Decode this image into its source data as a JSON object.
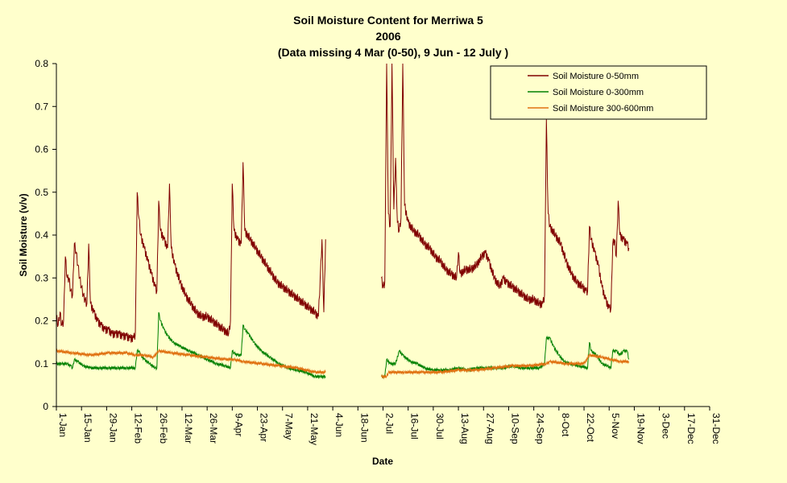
{
  "chart_data": {
    "type": "line",
    "title": [
      "Soil Moisture Content for Merriwa 5",
      "2006",
      "(Data missing 4 Mar (0-50), 9 Jun - 12 July )"
    ],
    "xlabel": "Date",
    "ylabel": "Soil Moisture (v/v)",
    "ylim": [
      0,
      0.8
    ],
    "yticks": [
      "0",
      "0.1",
      "0.2",
      "0.3",
      "0.4",
      "0.5",
      "0.6",
      "0.7",
      "0.8"
    ],
    "xlim": [
      "1-Jan",
      "31-Dec"
    ],
    "xticks": [
      "1-Jan",
      "15-Jan",
      "29-Jan",
      "12-Feb",
      "26-Feb",
      "12-Mar",
      "26-Mar",
      "9-Apr",
      "23-Apr",
      "7-May",
      "21-May",
      "4-Jun",
      "18-Jun",
      "2-Jul",
      "16-Jul",
      "30-Jul",
      "13-Aug",
      "27-Aug",
      "10-Sep",
      "24-Sep",
      "8-Oct",
      "22-Oct",
      "5-Nov",
      "19-Nov",
      "3-Dec",
      "17-Dec",
      "31-Dec"
    ],
    "grid": false,
    "legend_position": "top-right",
    "colors": {
      "background": "#ffffcc",
      "series_0_50": "#800000",
      "series_0_300": "#008000",
      "series_300_600": "#e07010"
    },
    "series": [
      {
        "name": "Soil Moisture 0-50mm",
        "color": "#800000",
        "points": [
          [
            1,
            0.21
          ],
          [
            2,
            0.19
          ],
          [
            3,
            0.22
          ],
          [
            4,
            0.19
          ],
          [
            5,
            0.2
          ],
          [
            6,
            0.35
          ],
          [
            7,
            0.3
          ],
          [
            8,
            0.3
          ],
          [
            9,
            0.27
          ],
          [
            10,
            0.26
          ],
          [
            11,
            0.38
          ],
          [
            12,
            0.36
          ],
          [
            13,
            0.33
          ],
          [
            14,
            0.3
          ],
          [
            15,
            0.28
          ],
          [
            16,
            0.26
          ],
          [
            17,
            0.25
          ],
          [
            18,
            0.24
          ],
          [
            19,
            0.38
          ],
          [
            20,
            0.24
          ],
          [
            22,
            0.22
          ],
          [
            24,
            0.2
          ],
          [
            26,
            0.19
          ],
          [
            28,
            0.18
          ],
          [
            30,
            0.18
          ],
          [
            32,
            0.17
          ],
          [
            34,
            0.17
          ],
          [
            36,
            0.17
          ],
          [
            38,
            0.165
          ],
          [
            40,
            0.165
          ],
          [
            42,
            0.16
          ],
          [
            44,
            0.16
          ],
          [
            45,
            0.17
          ],
          [
            46,
            0.5
          ],
          [
            47,
            0.44
          ],
          [
            48,
            0.4
          ],
          [
            50,
            0.37
          ],
          [
            52,
            0.34
          ],
          [
            54,
            0.31
          ],
          [
            56,
            0.28
          ],
          [
            57,
            0.27
          ],
          [
            58,
            0.48
          ],
          [
            59,
            0.41
          ],
          [
            61,
            0.39
          ],
          [
            63,
            0.37
          ],
          [
            64,
            0.52
          ],
          [
            65,
            0.37
          ],
          [
            67,
            0.33
          ],
          [
            70,
            0.29
          ],
          [
            73,
            0.26
          ],
          [
            76,
            0.24
          ],
          [
            79,
            0.22
          ],
          [
            82,
            0.21
          ],
          [
            85,
            0.21
          ],
          [
            88,
            0.2
          ],
          [
            91,
            0.19
          ],
          [
            94,
            0.18
          ],
          [
            97,
            0.17
          ],
          [
            98,
            0.2
          ],
          [
            99,
            0.52
          ],
          [
            100,
            0.41
          ],
          [
            102,
            0.39
          ],
          [
            104,
            0.38
          ],
          [
            105,
            0.57
          ],
          [
            106,
            0.41
          ],
          [
            109,
            0.39
          ],
          [
            112,
            0.37
          ],
          [
            115,
            0.35
          ],
          [
            118,
            0.33
          ],
          [
            121,
            0.31
          ],
          [
            124,
            0.29
          ],
          [
            127,
            0.28
          ],
          [
            130,
            0.27
          ],
          [
            133,
            0.26
          ],
          [
            136,
            0.25
          ],
          [
            139,
            0.24
          ],
          [
            142,
            0.23
          ],
          [
            145,
            0.22
          ],
          [
            147,
            0.21
          ],
          [
            148,
            0.3
          ],
          [
            149,
            0.39
          ],
          [
            150,
            0.22
          ],
          [
            151,
            0.39
          ],
          null,
          [
            182,
            0.3
          ],
          [
            183,
            0.28
          ],
          [
            184,
            0.29
          ],
          [
            185,
            0.8
          ],
          [
            186,
            0.45
          ],
          [
            187,
            0.42
          ],
          [
            188,
            0.8
          ],
          [
            189,
            0.46
          ],
          [
            190,
            0.58
          ],
          [
            191,
            0.43
          ],
          [
            192,
            0.41
          ],
          [
            193,
            0.44
          ],
          [
            194,
            0.8
          ],
          [
            195,
            0.47
          ],
          [
            197,
            0.43
          ],
          [
            200,
            0.41
          ],
          [
            203,
            0.4
          ],
          [
            206,
            0.38
          ],
          [
            209,
            0.37
          ],
          [
            212,
            0.35
          ],
          [
            215,
            0.34
          ],
          [
            218,
            0.32
          ],
          [
            221,
            0.31
          ],
          [
            224,
            0.3
          ],
          [
            225,
            0.36
          ],
          [
            226,
            0.31
          ],
          [
            229,
            0.32
          ],
          [
            232,
            0.32
          ],
          [
            235,
            0.33
          ],
          [
            238,
            0.35
          ],
          [
            240,
            0.36
          ],
          [
            242,
            0.34
          ],
          [
            245,
            0.3
          ],
          [
            248,
            0.28
          ],
          [
            250,
            0.3
          ],
          [
            252,
            0.29
          ],
          [
            255,
            0.28
          ],
          [
            258,
            0.27
          ],
          [
            261,
            0.26
          ],
          [
            264,
            0.25
          ],
          [
            267,
            0.25
          ],
          [
            270,
            0.24
          ],
          [
            272,
            0.24
          ],
          [
            273,
            0.26
          ],
          [
            274,
            0.67
          ],
          [
            275,
            0.45
          ],
          [
            276,
            0.42
          ],
          [
            279,
            0.4
          ],
          [
            282,
            0.38
          ],
          [
            285,
            0.34
          ],
          [
            288,
            0.31
          ],
          [
            291,
            0.29
          ],
          [
            294,
            0.28
          ],
          [
            296,
            0.27
          ],
          [
            297,
            0.27
          ],
          [
            298,
            0.42
          ],
          [
            299,
            0.39
          ],
          [
            301,
            0.36
          ],
          [
            303,
            0.33
          ],
          [
            305,
            0.28
          ],
          [
            307,
            0.25
          ],
          [
            309,
            0.23
          ],
          [
            310,
            0.23
          ],
          [
            311,
            0.38
          ],
          [
            312,
            0.39
          ],
          [
            313,
            0.35
          ],
          [
            314,
            0.48
          ],
          [
            315,
            0.4
          ],
          [
            317,
            0.39
          ],
          [
            319,
            0.38
          ],
          [
            320,
            0.37
          ]
        ]
      },
      {
        "name": "Soil Moisture 0-300mm",
        "color": "#008000",
        "points": [
          [
            1,
            0.1
          ],
          [
            4,
            0.1
          ],
          [
            7,
            0.1
          ],
          [
            9,
            0.095
          ],
          [
            10,
            0.09
          ],
          [
            11,
            0.11
          ],
          [
            13,
            0.105
          ],
          [
            16,
            0.095
          ],
          [
            20,
            0.09
          ],
          [
            25,
            0.09
          ],
          [
            30,
            0.09
          ],
          [
            35,
            0.09
          ],
          [
            40,
            0.09
          ],
          [
            45,
            0.09
          ],
          [
            46,
            0.13
          ],
          [
            47,
            0.13
          ],
          [
            48,
            0.12
          ],
          [
            50,
            0.11
          ],
          [
            53,
            0.1
          ],
          [
            56,
            0.09
          ],
          [
            57,
            0.09
          ],
          [
            58,
            0.22
          ],
          [
            59,
            0.2
          ],
          [
            61,
            0.18
          ],
          [
            63,
            0.165
          ],
          [
            66,
            0.15
          ],
          [
            70,
            0.14
          ],
          [
            75,
            0.13
          ],
          [
            80,
            0.12
          ],
          [
            85,
            0.11
          ],
          [
            90,
            0.1
          ],
          [
            95,
            0.095
          ],
          [
            98,
            0.09
          ],
          [
            99,
            0.13
          ],
          [
            100,
            0.125
          ],
          [
            102,
            0.12
          ],
          [
            104,
            0.12
          ],
          [
            105,
            0.19
          ],
          [
            106,
            0.18
          ],
          [
            108,
            0.17
          ],
          [
            111,
            0.15
          ],
          [
            115,
            0.13
          ],
          [
            120,
            0.115
          ],
          [
            125,
            0.1
          ],
          [
            130,
            0.09
          ],
          [
            135,
            0.085
          ],
          [
            140,
            0.08
          ],
          [
            145,
            0.07
          ],
          [
            148,
            0.07
          ],
          [
            151,
            0.07
          ],
          null,
          [
            182,
            0.07
          ],
          [
            184,
            0.07
          ],
          [
            185,
            0.11
          ],
          [
            187,
            0.1
          ],
          [
            190,
            0.1
          ],
          [
            192,
            0.13
          ],
          [
            194,
            0.12
          ],
          [
            198,
            0.105
          ],
          [
            202,
            0.1
          ],
          [
            206,
            0.09
          ],
          [
            210,
            0.085
          ],
          [
            215,
            0.085
          ],
          [
            220,
            0.085
          ],
          [
            225,
            0.09
          ],
          [
            230,
            0.085
          ],
          [
            235,
            0.09
          ],
          [
            240,
            0.09
          ],
          [
            245,
            0.09
          ],
          [
            250,
            0.09
          ],
          [
            255,
            0.095
          ],
          [
            260,
            0.09
          ],
          [
            265,
            0.09
          ],
          [
            270,
            0.09
          ],
          [
            273,
            0.1
          ],
          [
            274,
            0.16
          ],
          [
            276,
            0.16
          ],
          [
            278,
            0.14
          ],
          [
            281,
            0.12
          ],
          [
            284,
            0.105
          ],
          [
            287,
            0.1
          ],
          [
            292,
            0.095
          ],
          [
            297,
            0.09
          ],
          [
            298,
            0.15
          ],
          [
            299,
            0.13
          ],
          [
            302,
            0.12
          ],
          [
            305,
            0.1
          ],
          [
            308,
            0.095
          ],
          [
            310,
            0.09
          ],
          [
            311,
            0.13
          ],
          [
            313,
            0.13
          ],
          [
            315,
            0.12
          ],
          [
            317,
            0.13
          ],
          [
            319,
            0.13
          ],
          [
            320,
            0.11
          ]
        ]
      },
      {
        "name": "Soil Moisture 300-600mm",
        "color": "#e07010",
        "points": [
          [
            1,
            0.13
          ],
          [
            10,
            0.125
          ],
          [
            20,
            0.12
          ],
          [
            30,
            0.125
          ],
          [
            40,
            0.125
          ],
          [
            45,
            0.12
          ],
          [
            50,
            0.12
          ],
          [
            55,
            0.115
          ],
          [
            58,
            0.13
          ],
          [
            65,
            0.125
          ],
          [
            75,
            0.12
          ],
          [
            85,
            0.115
          ],
          [
            95,
            0.11
          ],
          [
            100,
            0.11
          ],
          [
            105,
            0.105
          ],
          [
            115,
            0.1
          ],
          [
            125,
            0.095
          ],
          [
            135,
            0.09
          ],
          [
            145,
            0.08
          ],
          [
            151,
            0.08
          ],
          null,
          [
            182,
            0.07
          ],
          [
            185,
            0.07
          ],
          [
            186,
            0.08
          ],
          [
            195,
            0.08
          ],
          [
            205,
            0.08
          ],
          [
            215,
            0.08
          ],
          [
            225,
            0.085
          ],
          [
            235,
            0.085
          ],
          [
            245,
            0.09
          ],
          [
            255,
            0.095
          ],
          [
            265,
            0.095
          ],
          [
            274,
            0.1
          ],
          [
            276,
            0.105
          ],
          [
            285,
            0.1
          ],
          [
            295,
            0.1
          ],
          [
            298,
            0.12
          ],
          [
            305,
            0.115
          ],
          [
            310,
            0.11
          ],
          [
            315,
            0.105
          ],
          [
            320,
            0.105
          ]
        ]
      }
    ]
  }
}
